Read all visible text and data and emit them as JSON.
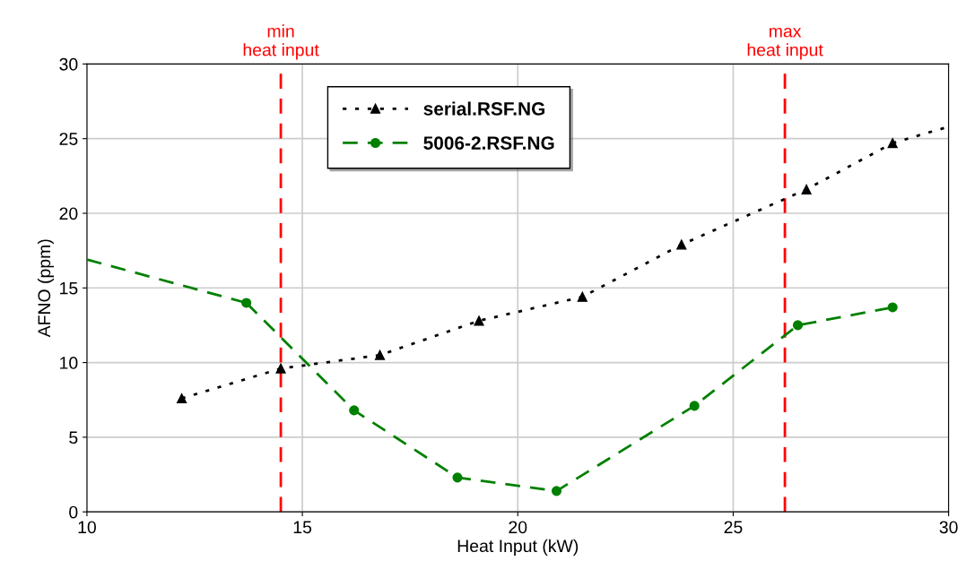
{
  "chart_data": {
    "type": "line",
    "xlabel": "Heat Input (kW)",
    "ylabel": "AFNO (ppm)",
    "xlim": [
      10,
      30
    ],
    "xticks": [
      10,
      15,
      20,
      25,
      30
    ],
    "ylim": [
      0,
      30
    ],
    "yticks": [
      0,
      5,
      10,
      15,
      20,
      25,
      30
    ],
    "grid": true,
    "legend": "top",
    "series": [
      {
        "name": "serial.RSF.NG",
        "color": "#000000",
        "marker": "triangle",
        "line_style": "dotted",
        "x": [
          12.2,
          14.5,
          16.8,
          19.1,
          21.5,
          23.8,
          26.7,
          28.7
        ],
        "values": [
          7.6,
          9.6,
          10.5,
          12.8,
          14.4,
          17.9,
          21.6,
          24.7
        ]
      },
      {
        "name": "5006-2.RSF.NG",
        "color": "#008000",
        "marker": "circle",
        "line_style": "dashed",
        "x": [
          13.7,
          16.2,
          18.6,
          20.9,
          24.1,
          26.5,
          28.7
        ],
        "values": [
          14.0,
          6.8,
          2.3,
          1.4,
          7.1,
          12.5,
          13.7
        ]
      },
      {
        "color": "#000000",
        "marker": "none",
        "line_style": "dotted",
        "x": [
          28.7,
          30
        ],
        "values": [
          24.7,
          25.8
        ]
      },
      {
        "color": "#008000",
        "marker": "none",
        "line_style": "dashed",
        "x": [
          10,
          13.7
        ],
        "values": [
          16.9,
          14.0
        ]
      }
    ],
    "ref_lines": [
      {
        "axis": "x",
        "value": 14.5,
        "label": "min\nheat input",
        "color": "#ff0000",
        "line_style": "dashed"
      },
      {
        "axis": "x",
        "value": 26.2,
        "label": "max\nheat input",
        "color": "#ff0000",
        "line_style": "dashed"
      }
    ]
  }
}
